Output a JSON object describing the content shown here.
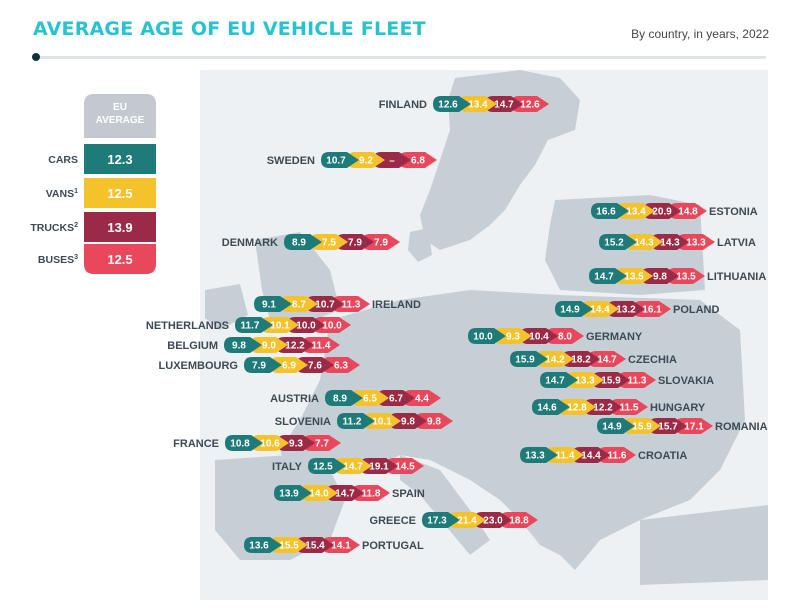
{
  "title": "AVERAGE AGE OF EU VEHICLE FLEET",
  "subtitle": "By country, in years, 2022",
  "colors": {
    "cars": "#1f7a7a",
    "vans": "#f4c22b",
    "trucks": "#9b2a47",
    "buses": "#e8475c",
    "map_land": "#c7cfd6",
    "map_bg": "#eef1f3"
  },
  "chart_data": {
    "type": "table",
    "title": "AVERAGE AGE OF EU VEHICLE FLEET",
    "subtitle": "By country, in years, 2022",
    "unit": "years",
    "series_names": [
      "CARS",
      "VANS",
      "TRUCKS",
      "BUSES"
    ],
    "footnotes": [
      "",
      "1",
      "2",
      "3"
    ],
    "eu_average": {
      "heading_line1": "EU",
      "heading_line2": "AVERAGE",
      "values": [
        "12.3",
        "12.5",
        "13.9",
        "12.5"
      ]
    },
    "countries": [
      {
        "name": "FINLAND",
        "values": [
          "12.6",
          "13.4",
          "14.7",
          "12.6"
        ]
      },
      {
        "name": "SWEDEN",
        "values": [
          "10.7",
          "9.2",
          "–",
          "6.8"
        ]
      },
      {
        "name": "ESTONIA",
        "values": [
          "16.6",
          "13.4",
          "20.9",
          "14.8"
        ]
      },
      {
        "name": "DENMARK",
        "values": [
          "8.9",
          "7.5",
          "7.9",
          "7.9"
        ]
      },
      {
        "name": "LATVIA",
        "values": [
          "15.2",
          "14.3",
          "14.3",
          "13.3"
        ]
      },
      {
        "name": "LITHUANIA",
        "values": [
          "14.7",
          "13.5",
          "9.8",
          "13.5"
        ]
      },
      {
        "name": "IRELAND",
        "values": [
          "9.1",
          "8.7",
          "10.7",
          "11.3"
        ]
      },
      {
        "name": "POLAND",
        "values": [
          "14.9",
          "14.4",
          "13.2",
          "16.1"
        ]
      },
      {
        "name": "NETHERLANDS",
        "values": [
          "11.7",
          "10.1",
          "10.0",
          "10.0"
        ]
      },
      {
        "name": "GERMANY",
        "values": [
          "10.0",
          "9.3",
          "10.4",
          "8.0"
        ]
      },
      {
        "name": "BELGIUM",
        "values": [
          "9.8",
          "9.0",
          "12.2",
          "11.4"
        ]
      },
      {
        "name": "CZECHIA",
        "values": [
          "15.9",
          "14.2",
          "18.2",
          "14.7"
        ]
      },
      {
        "name": "LUXEMBOURG",
        "values": [
          "7.9",
          "6.9",
          "7.6",
          "6.3"
        ]
      },
      {
        "name": "SLOVAKIA",
        "values": [
          "14.7",
          "13.3",
          "15.9",
          "11.3"
        ]
      },
      {
        "name": "AUSTRIA",
        "values": [
          "8.9",
          "6.5",
          "6.7",
          "4.4"
        ]
      },
      {
        "name": "HUNGARY",
        "values": [
          "14.6",
          "12.8",
          "12.2",
          "11.5"
        ]
      },
      {
        "name": "SLOVENIA",
        "values": [
          "11.2",
          "10.1",
          "9.8",
          "9.8"
        ]
      },
      {
        "name": "ROMANIA",
        "values": [
          "14.9",
          "15.9",
          "15.7",
          "17.1"
        ]
      },
      {
        "name": "FRANCE",
        "values": [
          "10.8",
          "10.6",
          "9.3",
          "7.7"
        ]
      },
      {
        "name": "CROATIA",
        "values": [
          "13.3",
          "11.4",
          "14.4",
          "11.6"
        ]
      },
      {
        "name": "ITALY",
        "values": [
          "12.5",
          "14.7",
          "19.1",
          "14.5"
        ]
      },
      {
        "name": "SPAIN",
        "values": [
          "13.9",
          "14.0",
          "14.7",
          "11.8"
        ]
      },
      {
        "name": "GREECE",
        "values": [
          "17.3",
          "21.4",
          "23.0",
          "18.8"
        ]
      },
      {
        "name": "PORTUGAL",
        "values": [
          "13.6",
          "15.5",
          "15.4",
          "14.1"
        ]
      }
    ]
  }
}
